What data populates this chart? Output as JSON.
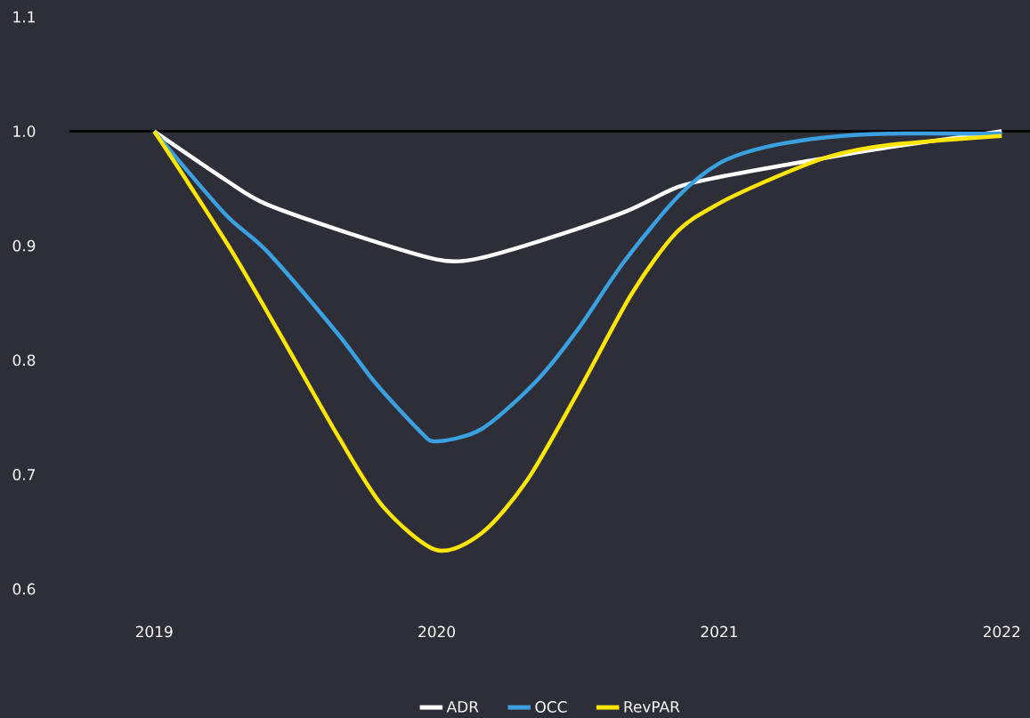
{
  "chart_data": {
    "type": "line",
    "series": [
      {
        "name": "ADR",
        "color": "#ffffff",
        "x": [
          2019,
          2019.25,
          2019.4,
          2019.75,
          2020,
          2020.13,
          2020.35,
          2020.66,
          2020.85,
          2021,
          2021.29,
          2021.6,
          2022
        ],
        "values": [
          1.0,
          0.958,
          0.936,
          0.906,
          0.888,
          0.888,
          0.903,
          0.929,
          0.951,
          0.96,
          0.973,
          0.986,
          1.0
        ]
      },
      {
        "name": "OCC",
        "color": "#3aa0e0",
        "x": [
          2019,
          2019.25,
          2019.4,
          2019.65,
          2019.78,
          2019.94,
          2020,
          2020.16,
          2020.35,
          2020.5,
          2020.66,
          2020.85,
          2021,
          2021.16,
          2021.39,
          2021.6,
          2022
        ],
        "values": [
          1.0,
          0.928,
          0.895,
          0.823,
          0.781,
          0.738,
          0.729,
          0.74,
          0.781,
          0.827,
          0.885,
          0.942,
          0.972,
          0.986,
          0.995,
          0.998,
          0.998
        ]
      },
      {
        "name": "RevPAR",
        "color": "#ffe600",
        "x": [
          2019,
          2019.12,
          2019.28,
          2019.47,
          2019.65,
          2019.81,
          2020,
          2020.16,
          2020.32,
          2020.5,
          2020.69,
          2020.85,
          2021,
          2021.2,
          2021.39,
          2021.6,
          2022
        ],
        "values": [
          1.0,
          0.955,
          0.893,
          0.812,
          0.734,
          0.672,
          0.634,
          0.649,
          0.695,
          0.772,
          0.858,
          0.912,
          0.937,
          0.96,
          0.978,
          0.988,
          0.996
        ]
      }
    ],
    "xlim": [
      2018.7,
      2022.1
    ],
    "xticks": [
      2019,
      2020,
      2021,
      2022
    ],
    "ylim": [
      0.6,
      1.1
    ],
    "yticks": [
      0.6,
      0.7,
      0.8,
      0.9,
      {
        "value": 1.0,
        "label": "1.0"
      },
      1.1
    ],
    "ref_lines": [
      {
        "axis": "y",
        "value": 1.0,
        "color": "#000000"
      }
    ],
    "legend": "bottom",
    "marker": "none",
    "line_style": "solid"
  }
}
